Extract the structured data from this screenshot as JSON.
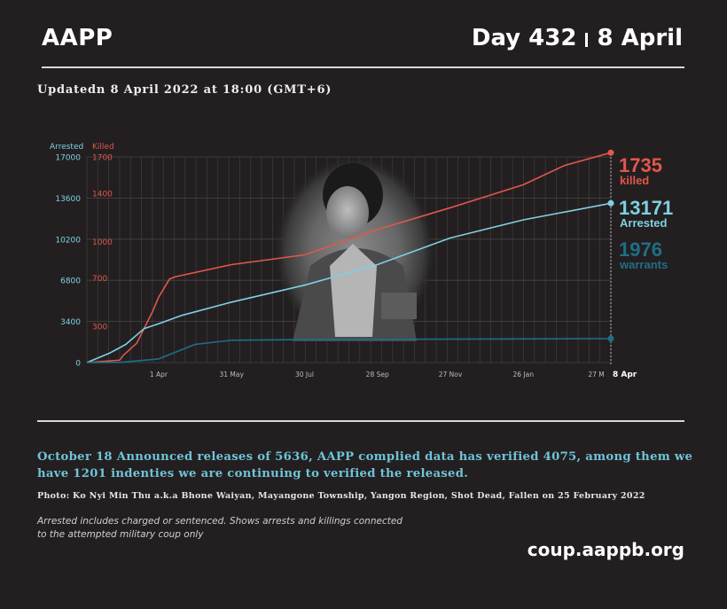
{
  "header": {
    "brand": "AAPP",
    "day": "Day 432",
    "date": "8 April"
  },
  "updated": "Updatedn 8 April 2022 at 18:00 (GMT+6)",
  "colors": {
    "background": "#231f20",
    "killed": "#e0574f",
    "arrested": "#7fd0e3",
    "warrants": "#1e6f86"
  },
  "chart_data": {
    "type": "line",
    "x": [
      "2021-02-01",
      "2021-04-01",
      "2021-05-31",
      "2021-07-30",
      "2021-09-28",
      "2021-11-27",
      "2022-01-26",
      "2022-03-27",
      "2022-04-08"
    ],
    "xticks": [
      "1 Apr",
      "31 May",
      "30 Jul",
      "28 Sep",
      "27 Nov",
      "26 Jan",
      "27 M",
      "8 Apr"
    ],
    "y_left": {
      "label": "Arrested",
      "ticks": [
        "17000",
        "13600",
        "10200",
        "6800",
        "3400",
        "0"
      ],
      "ylim": [
        0,
        17000
      ]
    },
    "y_right": {
      "label": "Killed",
      "ticks": [
        "1700",
        "1400",
        "1000",
        "700",
        "300"
      ],
      "ylim": [
        0,
        1700
      ]
    },
    "grid": true,
    "series": [
      {
        "name": "killed",
        "axis": "right",
        "color": "#e0574f",
        "final_value": "1735",
        "points": [
          [
            "2021-02-01",
            0
          ],
          [
            "2021-02-28",
            20
          ],
          [
            "2021-03-03",
            60
          ],
          [
            "2021-03-14",
            160
          ],
          [
            "2021-03-27",
            420
          ],
          [
            "2021-04-01",
            540
          ],
          [
            "2021-04-10",
            690
          ],
          [
            "2021-04-15",
            710
          ],
          [
            "2021-05-31",
            810
          ],
          [
            "2021-07-30",
            890
          ],
          [
            "2021-08-31",
            1000
          ],
          [
            "2021-09-28",
            1100
          ],
          [
            "2021-11-27",
            1280
          ],
          [
            "2022-01-26",
            1470
          ],
          [
            "2022-03-01",
            1630
          ],
          [
            "2022-04-08",
            1735
          ]
        ]
      },
      {
        "name": "Arrested",
        "axis": "left",
        "color": "#7fd0e3",
        "final_value": "13171",
        "points": [
          [
            "2021-02-01",
            0
          ],
          [
            "2021-02-20",
            800
          ],
          [
            "2021-03-05",
            1500
          ],
          [
            "2021-03-20",
            2800
          ],
          [
            "2021-04-01",
            3200
          ],
          [
            "2021-04-20",
            3900
          ],
          [
            "2021-05-31",
            5000
          ],
          [
            "2021-07-30",
            6400
          ],
          [
            "2021-09-28",
            8100
          ],
          [
            "2021-11-27",
            10300
          ],
          [
            "2022-01-26",
            11800
          ],
          [
            "2022-04-08",
            13171
          ]
        ]
      },
      {
        "name": "warrants",
        "axis": "left",
        "color": "#1e6f86",
        "final_value": "1976",
        "points": [
          [
            "2021-02-01",
            0
          ],
          [
            "2021-03-01",
            20
          ],
          [
            "2021-04-01",
            300
          ],
          [
            "2021-05-01",
            1500
          ],
          [
            "2021-05-31",
            1850
          ],
          [
            "2021-07-30",
            1900
          ],
          [
            "2022-04-08",
            1976
          ]
        ]
      }
    ],
    "end_labels": [
      {
        "value": "1735",
        "label": "killed",
        "color": "#e0574f"
      },
      {
        "value": "13171",
        "label": "Arrested",
        "color": "#7fd0e3"
      },
      {
        "value": "1976",
        "label": "warrants",
        "color": "#1e6f86"
      }
    ]
  },
  "announce": "October 18 Announced releases of 5636, AAPP complied data has verified 4075, among them we have 1201 indenties we are continuing to verified the released.",
  "photo_credit": "Photo: Ko Nyi Min Thu a.k.a Bhone Waiyan, Mayangone  Township, Yangon Region, Shot Dead, Fallen on 25 February 2022",
  "note": "Arrested includes charged or sentenced. Shows arrests and killings connected to the attempted military coup only",
  "site": "coup.aappb.org"
}
